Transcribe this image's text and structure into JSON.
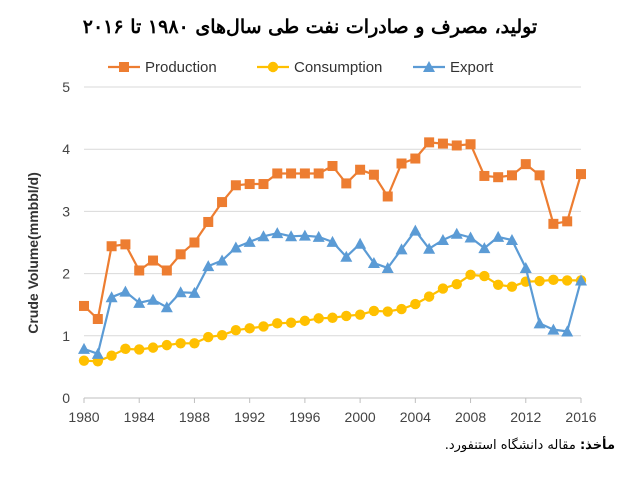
{
  "source_label": "مأخذ:",
  "source_text": "مقاله دانشگاه استنفورد.",
  "chart_data": {
    "type": "line",
    "title": "تولید، مصرف و صادرات نفت طی سال‌های ۱۹۸۰ تا ۲۰۱۶",
    "xlabel": "",
    "ylabel": "Crude Volume(mmbbl/d)",
    "xlim": [
      1980,
      2016
    ],
    "ylim": [
      0,
      5
    ],
    "xticks": [
      1980,
      1984,
      1988,
      1992,
      1996,
      2000,
      2004,
      2008,
      2012,
      2016
    ],
    "yticks": [
      0,
      1,
      2,
      3,
      4,
      5
    ],
    "grid": true,
    "legend": "top",
    "x": [
      1980,
      1981,
      1982,
      1983,
      1984,
      1985,
      1986,
      1987,
      1988,
      1989,
      1990,
      1991,
      1992,
      1993,
      1994,
      1995,
      1996,
      1997,
      1998,
      1999,
      2000,
      2001,
      2002,
      2003,
      2004,
      2005,
      2006,
      2007,
      2008,
      2009,
      2010,
      2011,
      2012,
      2013,
      2014,
      2015,
      2016
    ],
    "series": [
      {
        "name": "Production",
        "color": "#ed7d31",
        "marker": "square",
        "values": [
          1.48,
          1.27,
          2.44,
          2.47,
          2.05,
          2.21,
          2.05,
          2.31,
          2.5,
          2.83,
          3.15,
          3.42,
          3.44,
          3.44,
          3.61,
          3.61,
          3.61,
          3.61,
          3.73,
          3.45,
          3.67,
          3.59,
          3.24,
          3.77,
          3.85,
          4.11,
          4.09,
          4.06,
          4.08,
          3.57,
          3.55,
          3.58,
          3.76,
          3.58,
          2.8,
          2.84,
          3.6
        ]
      },
      {
        "name": "Consumption",
        "color": "#ffc000",
        "marker": "circle",
        "values": [
          0.6,
          0.59,
          0.68,
          0.79,
          0.78,
          0.81,
          0.85,
          0.88,
          0.88,
          0.98,
          1.01,
          1.09,
          1.12,
          1.15,
          1.2,
          1.21,
          1.24,
          1.28,
          1.29,
          1.32,
          1.34,
          1.4,
          1.39,
          1.43,
          1.51,
          1.63,
          1.76,
          1.83,
          1.98,
          1.96,
          1.82,
          1.79,
          1.87,
          1.88,
          1.9,
          1.89,
          1.89
        ]
      },
      {
        "name": "Export",
        "color": "#5b9bd5",
        "marker": "triangle",
        "values": [
          0.79,
          0.71,
          1.62,
          1.71,
          1.53,
          1.58,
          1.46,
          1.7,
          1.69,
          2.12,
          2.21,
          2.42,
          2.51,
          2.6,
          2.65,
          2.6,
          2.61,
          2.59,
          2.51,
          2.27,
          2.48,
          2.17,
          2.09,
          2.39,
          2.69,
          2.4,
          2.54,
          2.64,
          2.58,
          2.41,
          2.59,
          2.54,
          2.09,
          1.2,
          1.1,
          1.07,
          1.89
        ]
      }
    ]
  }
}
